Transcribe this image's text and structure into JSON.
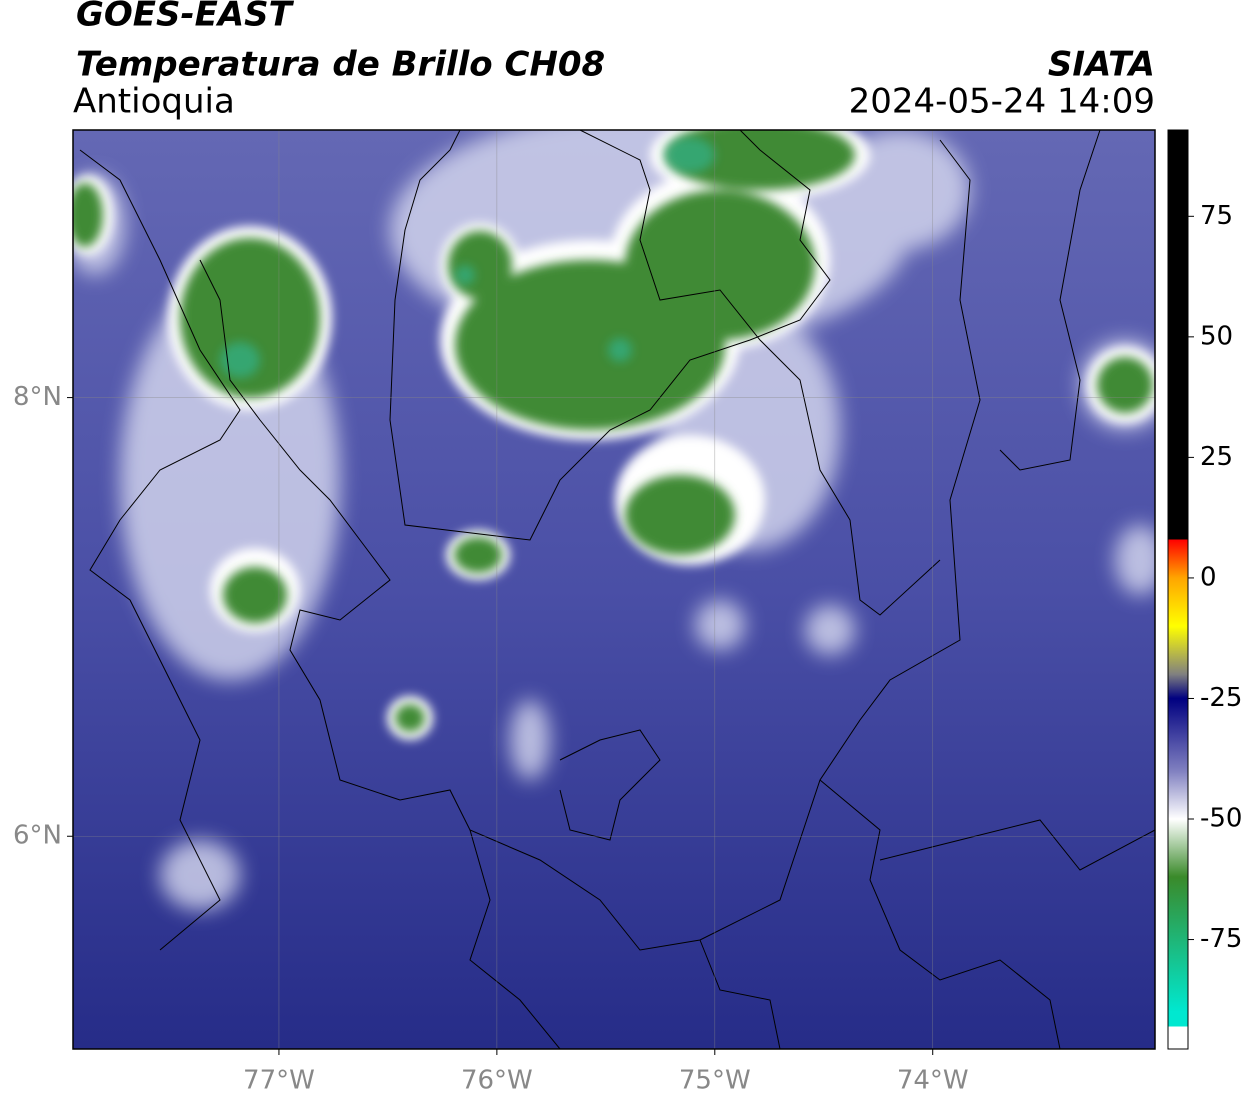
{
  "header": {
    "title": "GOES-EAST",
    "subtitle": "Temperatura de Brillo CH08",
    "source": "SIATA",
    "region": "Antioquia",
    "datetime": "2024-05-24 14:09"
  },
  "map": {
    "xlim": [
      -77.945,
      -72.98
    ],
    "ylim": [
      5.03,
      9.22
    ],
    "xticks": [
      {
        "value": -77,
        "label": "77°W"
      },
      {
        "value": -76,
        "label": "76°W"
      },
      {
        "value": -75,
        "label": "75°W"
      },
      {
        "value": -74,
        "label": "74°W"
      }
    ],
    "yticks": [
      {
        "value": 8,
        "label": "8°N"
      },
      {
        "value": 6,
        "label": "6°N"
      }
    ]
  },
  "colorbar": {
    "lim": [
      -97.7,
      92.9
    ],
    "ticks": [
      75,
      50,
      25,
      0,
      -25,
      -50,
      -75
    ],
    "stops": [
      [
        92.9,
        "#000000"
      ],
      [
        8,
        "#000000"
      ],
      [
        8,
        "#ff0000"
      ],
      [
        0,
        "#ffa500"
      ],
      [
        -10,
        "#ffff00"
      ],
      [
        -20,
        "#808080"
      ],
      [
        -25,
        "#000080"
      ],
      [
        -40,
        "#8080c0"
      ],
      [
        -50,
        "#ffffff"
      ],
      [
        -62,
        "#3a8a2a"
      ],
      [
        -90,
        "#00e8d0"
      ],
      [
        -93,
        "#00e8d0"
      ],
      [
        -93,
        "#ffffff"
      ],
      [
        -97.7,
        "#ffffff"
      ]
    ]
  }
}
